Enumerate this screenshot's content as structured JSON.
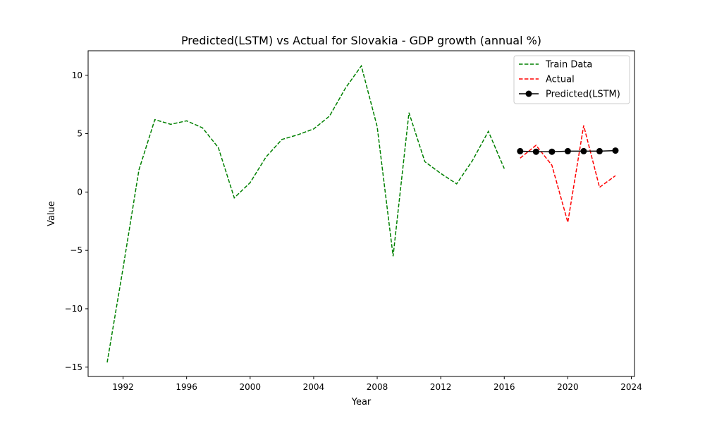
{
  "chart_data": {
    "type": "line",
    "title": "Predicted(LSTM) vs Actual for Slovakia - GDP growth (annual %)",
    "xlabel": "Year",
    "ylabel": "Value",
    "xlim": [
      1989.8,
      2024.2
    ],
    "ylim": [
      -15.8,
      12.1
    ],
    "x_ticks": [
      1992,
      1996,
      2000,
      2004,
      2008,
      2012,
      2016,
      2020,
      2024
    ],
    "y_ticks": [
      -15,
      -10,
      -5,
      0,
      5,
      10
    ],
    "grid": false,
    "legend_position": "top-right",
    "series": [
      {
        "name": "Train Data",
        "color": "#008000",
        "style": "dashed",
        "x": [
          1991,
          1992,
          1993,
          1994,
          1995,
          1996,
          1997,
          1998,
          1999,
          2000,
          2001,
          2002,
          2003,
          2004,
          2005,
          2006,
          2007,
          2008,
          2009,
          2010,
          2011,
          2012,
          2013,
          2014,
          2015,
          2016
        ],
        "y": [
          -14.6,
          -6.5,
          1.9,
          6.2,
          5.8,
          6.1,
          5.5,
          3.8,
          -0.5,
          0.8,
          3.0,
          4.5,
          4.9,
          5.4,
          6.5,
          8.9,
          10.8,
          5.6,
          -5.5,
          6.8,
          2.6,
          1.6,
          0.7,
          2.7,
          5.2,
          2.0
        ]
      },
      {
        "name": "Actual",
        "color": "#ff0000",
        "style": "dashed",
        "x": [
          2017,
          2018,
          2019,
          2020,
          2021,
          2022,
          2023
        ],
        "y": [
          2.9,
          4.0,
          2.3,
          -2.6,
          5.7,
          0.4,
          1.4
        ]
      },
      {
        "name": "Predicted(LSTM)",
        "color": "#000000",
        "style": "solid-marker",
        "x": [
          2017,
          2018,
          2019,
          2020,
          2021,
          2022,
          2023
        ],
        "y": [
          3.5,
          3.45,
          3.45,
          3.5,
          3.5,
          3.5,
          3.55
        ]
      }
    ]
  }
}
